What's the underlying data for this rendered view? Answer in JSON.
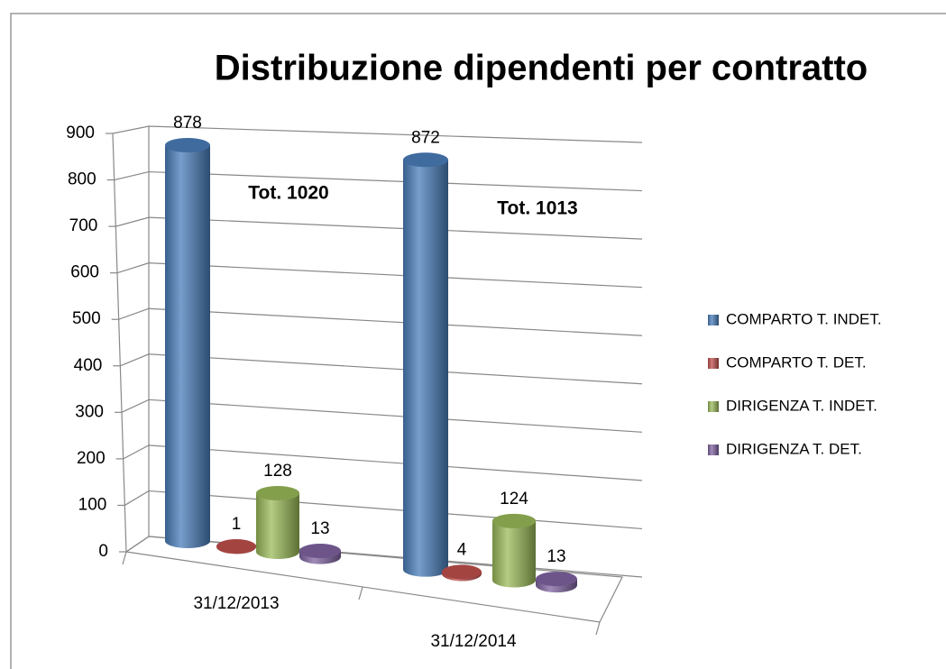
{
  "chart_data": {
    "type": "bar3d",
    "title": "Distribuzione dipendenti per contratto",
    "categories": [
      "31/12/2013",
      "31/12/2014"
    ],
    "series": [
      {
        "name": "COMPARTO T. INDET.",
        "color": "#4a7ebb",
        "values": [
          878,
          872
        ]
      },
      {
        "name": "COMPARTO T. DET.",
        "color": "#c0504d",
        "values": [
          1,
          4
        ]
      },
      {
        "name": "DIRIGENZA T. INDET.",
        "color": "#9bbb59",
        "values": [
          128,
          124
        ]
      },
      {
        "name": "DIRIGENZA T. DET.",
        "color": "#8064a2",
        "values": [
          13,
          13
        ]
      }
    ],
    "annotations": [
      "Tot. 1020",
      "Tot. 1013"
    ],
    "ylim": [
      0,
      900
    ],
    "yticks": [
      0,
      100,
      200,
      300,
      400,
      500,
      600,
      700,
      800,
      900
    ],
    "grid": true,
    "legend": "right"
  }
}
